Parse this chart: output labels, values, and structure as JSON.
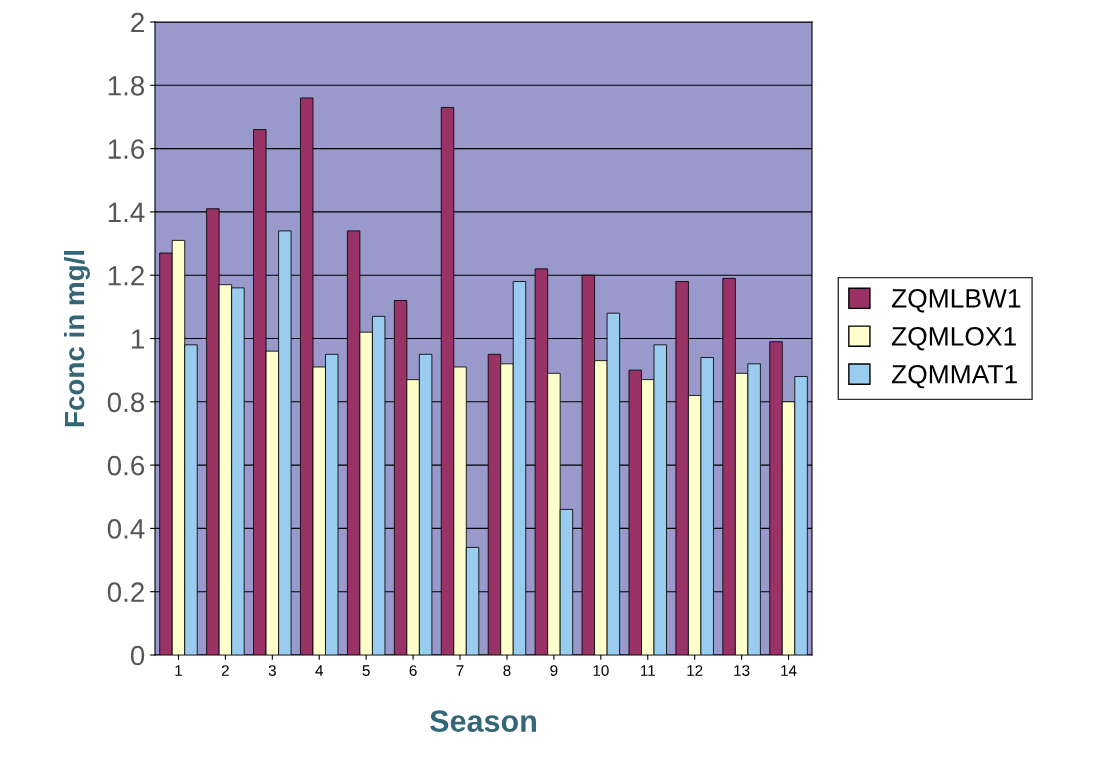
{
  "chart_data": {
    "type": "bar",
    "xlabel": "Season",
    "ylabel": "Fconc in mg/l",
    "categories": [
      "1",
      "2",
      "3",
      "4",
      "5",
      "6",
      "7",
      "8",
      "9",
      "10",
      "11",
      "12",
      "13",
      "14"
    ],
    "series": [
      {
        "name": "ZQMLBW1",
        "color": "#993366",
        "values": [
          1.27,
          1.41,
          1.66,
          1.76,
          1.34,
          1.12,
          1.73,
          0.95,
          1.22,
          1.2,
          0.9,
          1.18,
          1.19,
          0.99
        ]
      },
      {
        "name": "ZQMLOX1",
        "color": "#ffffcc",
        "values": [
          1.31,
          1.17,
          0.96,
          0.91,
          1.02,
          0.87,
          0.91,
          0.92,
          0.89,
          0.93,
          0.87,
          0.82,
          0.89,
          0.8
        ]
      },
      {
        "name": "ZQMMAT1",
        "color": "#99ccee",
        "values": [
          0.98,
          1.16,
          1.34,
          0.95,
          1.07,
          0.95,
          0.34,
          1.18,
          0.46,
          1.08,
          0.98,
          0.94,
          0.92,
          0.88
        ]
      }
    ],
    "ylim": [
      0,
      2
    ],
    "yticks": [
      0,
      0.2,
      0.4,
      0.6,
      0.8,
      1,
      1.2,
      1.4,
      1.6,
      1.8,
      2
    ],
    "grid": "y",
    "legend": "right"
  }
}
